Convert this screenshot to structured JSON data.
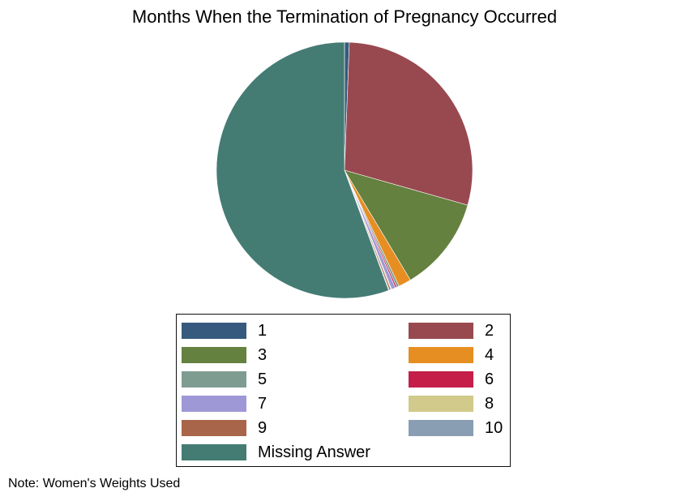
{
  "chart_data": {
    "type": "pie",
    "title": "Months When the Termination of Pregnancy Occurred",
    "note": "Note: Women's Weights Used",
    "legend_placement": "bottom",
    "slices": [
      {
        "label": "1",
        "value": 0.6,
        "color": "#355a7e"
      },
      {
        "label": "2",
        "value": 28.8,
        "color": "#98494f"
      },
      {
        "label": "3",
        "value": 12.0,
        "color": "#64813f"
      },
      {
        "label": "4",
        "value": 1.6,
        "color": "#e68e22"
      },
      {
        "label": "5",
        "value": 0.3,
        "color": "#7f9c90"
      },
      {
        "label": "6",
        "value": 0.2,
        "color": "#c41e49"
      },
      {
        "label": "7",
        "value": 0.5,
        "color": "#9f98d6"
      },
      {
        "label": "8",
        "value": 0.1,
        "color": "#d1ca8a"
      },
      {
        "label": "9",
        "value": 0.2,
        "color": "#a9654a"
      },
      {
        "label": "10",
        "value": 0.1,
        "color": "#8a9eb3"
      },
      {
        "label": "Missing Answer",
        "value": 55.6,
        "color": "#447c74"
      }
    ]
  }
}
